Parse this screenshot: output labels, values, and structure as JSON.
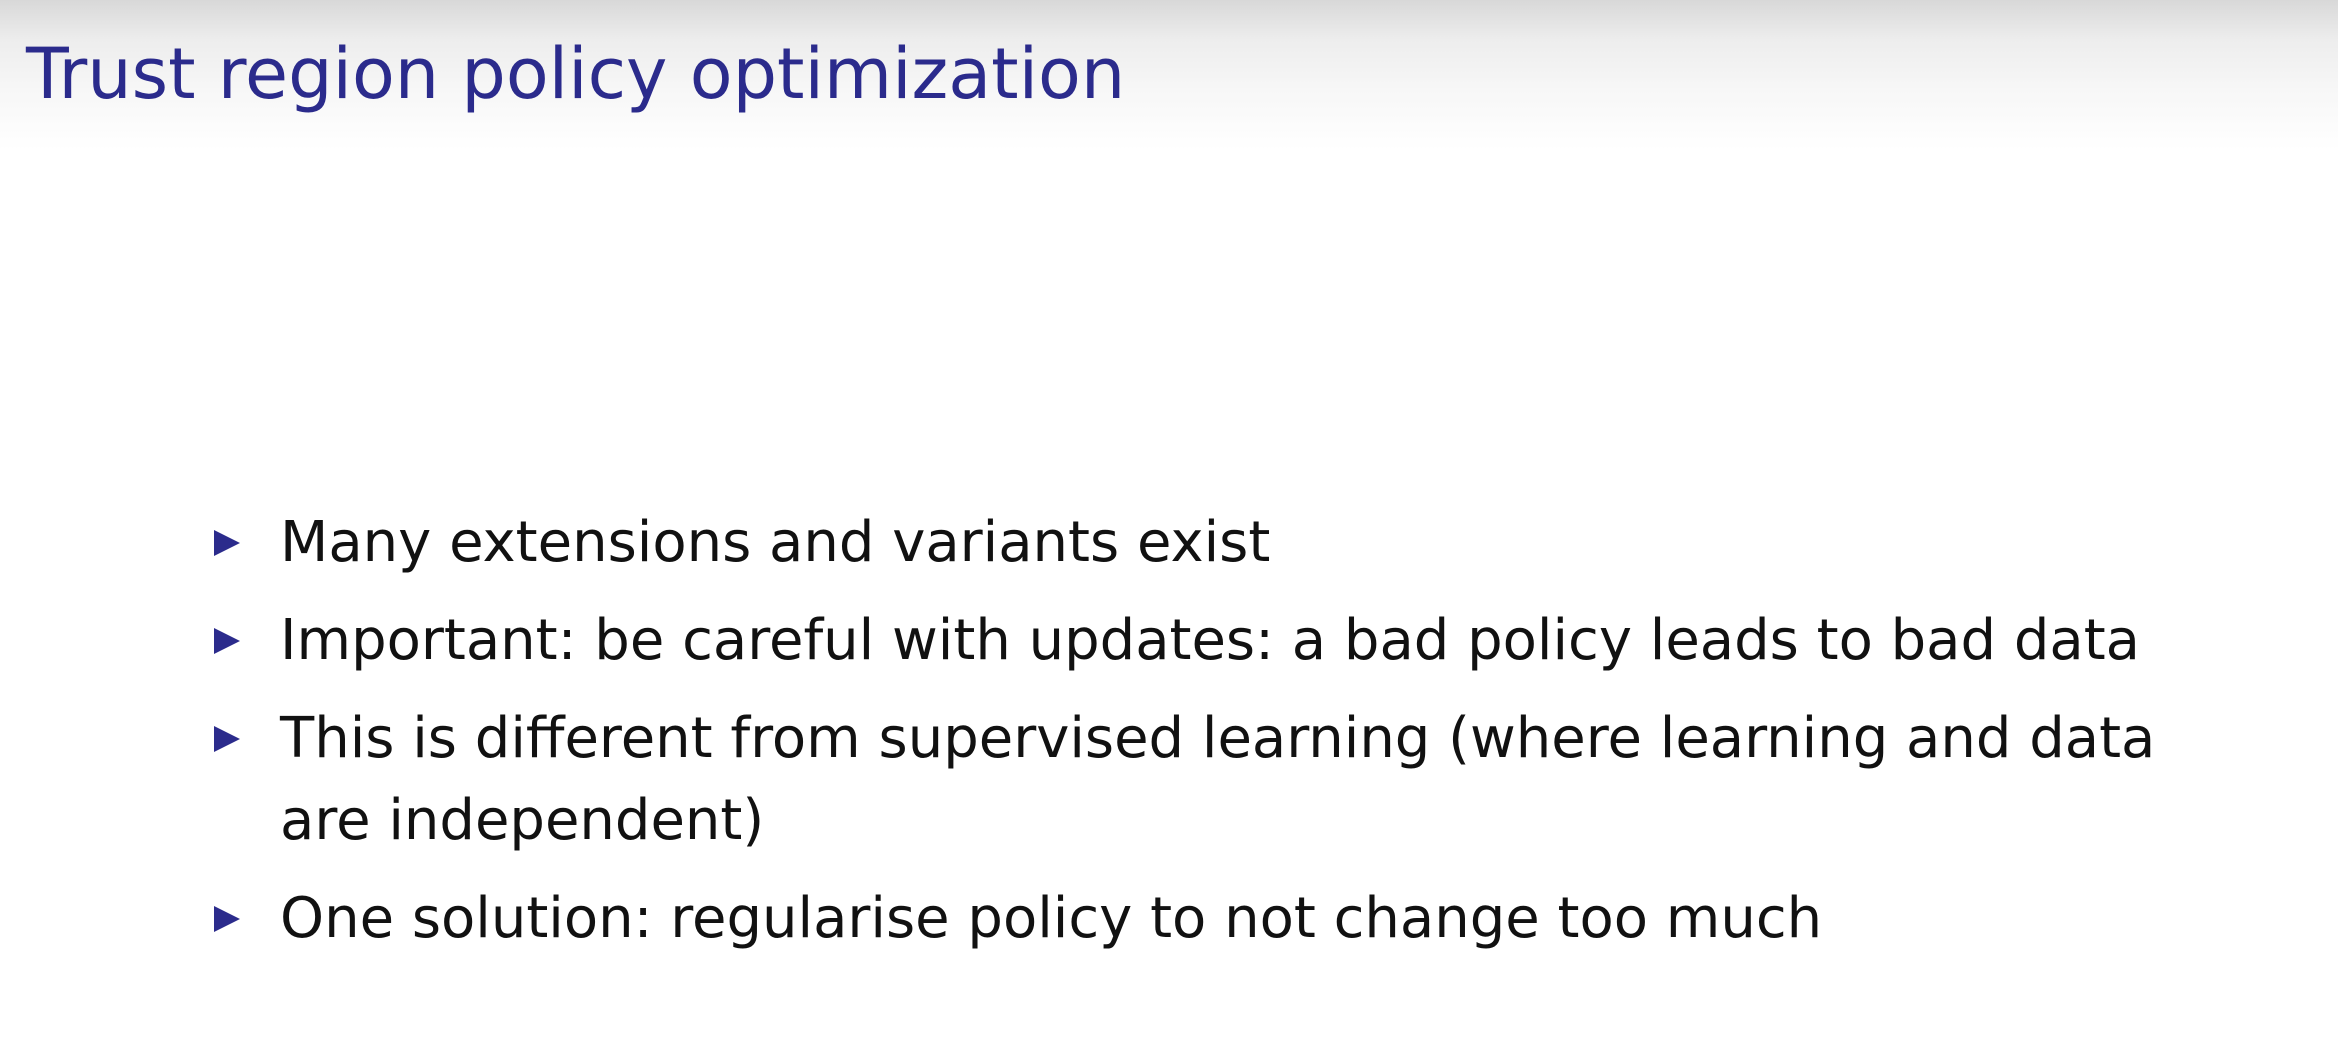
{
  "slide": {
    "title": "Trust region policy optimization",
    "bullets": [
      {
        "text": "Many extensions and variants exist",
        "marker_icon": "triangle-right-icon"
      },
      {
        "text": "Important: be careful with updates: a bad policy leads to bad data",
        "marker_icon": "triangle-right-icon"
      },
      {
        "text": "This is different from supervised learning (where learning and data are independent)",
        "marker_icon": "triangle-right-icon"
      },
      {
        "text": "One solution: regularise policy to not change too much",
        "marker_icon": "triangle-right-icon"
      }
    ]
  },
  "colors": {
    "title": "#2b2b8c",
    "bullet_marker": "#2b2b8c",
    "body_text": "#111111",
    "background": "#ffffff"
  }
}
